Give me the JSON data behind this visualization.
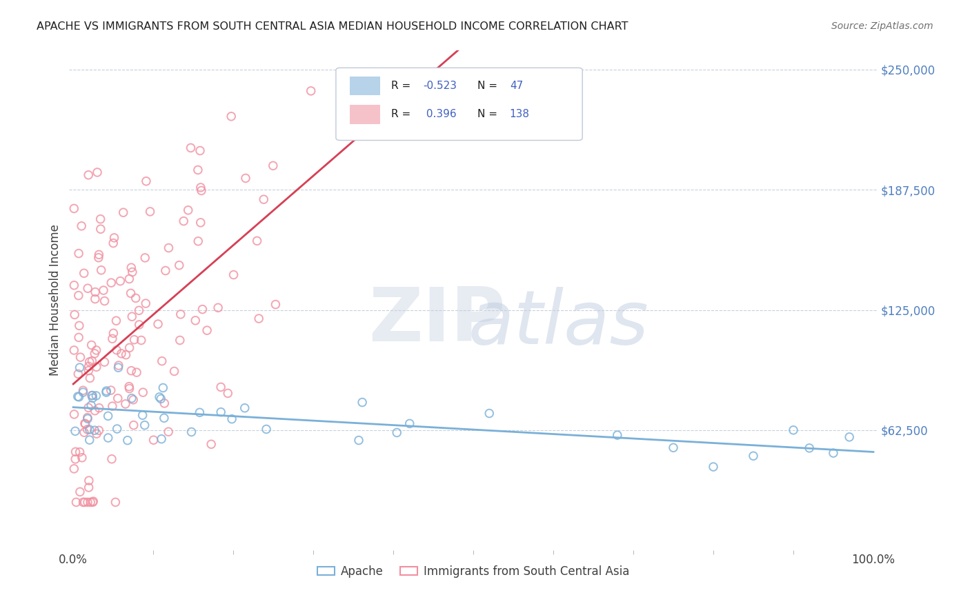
{
  "title": "APACHE VS IMMIGRANTS FROM SOUTH CENTRAL ASIA MEDIAN HOUSEHOLD INCOME CORRELATION CHART",
  "source": "Source: ZipAtlas.com",
  "ylabel": "Median Household Income",
  "ytick_vals": [
    62500,
    125000,
    187500,
    250000
  ],
  "ytick_labels": [
    "$62,500",
    "$125,000",
    "$187,500",
    "$250,000"
  ],
  "ymax": 260000,
  "xmax": 1.0,
  "apache_color": "#7ab0d8",
  "immigrants_color": "#f090a0",
  "apache_trend_color": "#7ab0d8",
  "immigrants_trend_color": "#d84055",
  "dashed_trend_color": "#c0c8d8",
  "background_color": "#ffffff",
  "apache_R": -0.523,
  "apache_N": 47,
  "immigrants_R": 0.396,
  "immigrants_N": 138,
  "title_color": "#202020",
  "source_color": "#707070",
  "ytick_color": "#5080c0",
  "xtick_color": "#404040",
  "ylabel_color": "#404040",
  "grid_color": "#c8d0dc",
  "legend_edge_color": "#c0c8d8",
  "legend_text_color": "#202020",
  "legend_value_color": "#4060c0"
}
